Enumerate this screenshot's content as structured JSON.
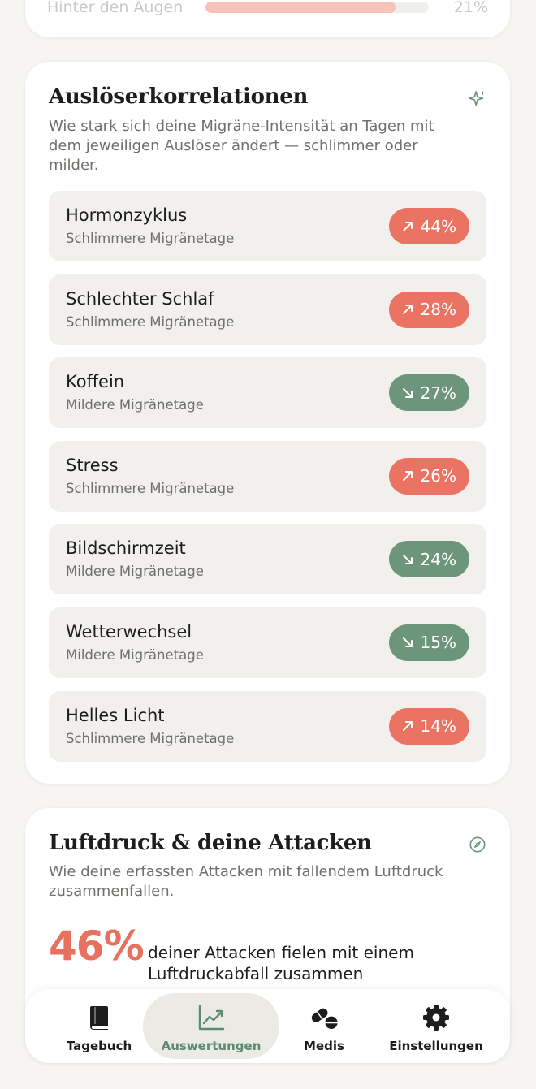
{
  "top_item": {
    "label": "Hinter den Augen",
    "percent": "21%",
    "fill": 0.85
  },
  "triggers": {
    "title": "Auslöserkorrelationen",
    "description": "Wie stark sich deine Migräne-Intensität an Tagen mit dem jeweiligen Auslöser ändert — schlimmer oder milder.",
    "icon": "sparkles-icon",
    "items": [
      {
        "name": "Hormonzyklus",
        "effect": "Schlimmere Migränetage",
        "value": "44%",
        "direction": "up"
      },
      {
        "name": "Schlechter Schlaf",
        "effect": "Schlimmere Migränetage",
        "value": "28%",
        "direction": "up"
      },
      {
        "name": "Koffein",
        "effect": "Mildere Migränetage",
        "value": "27%",
        "direction": "down"
      },
      {
        "name": "Stress",
        "effect": "Schlimmere Migränetage",
        "value": "26%",
        "direction": "up"
      },
      {
        "name": "Bildschirmzeit",
        "effect": "Mildere Migränetage",
        "value": "24%",
        "direction": "down"
      },
      {
        "name": "Wetterwechsel",
        "effect": "Mildere Migränetage",
        "value": "15%",
        "direction": "down"
      },
      {
        "name": "Helles Licht",
        "effect": "Schlimmere Migränetage",
        "value": "14%",
        "direction": "up"
      }
    ]
  },
  "pressure": {
    "title": "Luftdruck & deine Attacken",
    "description": "Wie deine erfassten Attacken mit fallendem Luftdruck zusammenfallen.",
    "icon": "compass-icon",
    "percent": "46%",
    "text": "deiner Attacken fielen mit einem Luftdruckabfall zusammen"
  },
  "tabs": [
    {
      "label": "Tagebuch",
      "icon": "book-icon",
      "active": false
    },
    {
      "label": "Auswertungen",
      "icon": "chart-icon",
      "active": true
    },
    {
      "label": "Medis",
      "icon": "pills-icon",
      "active": false
    },
    {
      "label": "Einstellungen",
      "icon": "gear-icon",
      "active": false
    }
  ],
  "colors": {
    "worse": "#ea7363",
    "milder": "#6c957b",
    "accent": "#5d8c70"
  }
}
